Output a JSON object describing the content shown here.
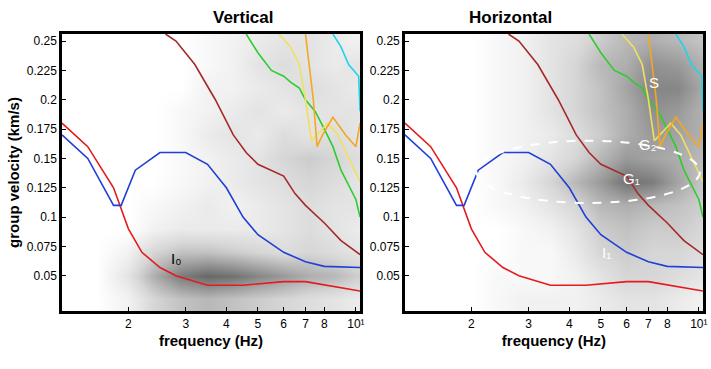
{
  "chart_data": [
    {
      "type": "line",
      "title": "Vertical",
      "x_label": "frequency (Hz)",
      "y_label": "group velocity (km/s)",
      "log": "x",
      "grid": false,
      "xlim": [
        1.25,
        10.3
      ],
      "ylim": [
        0.02,
        0.256
      ],
      "xticks": [
        2,
        3,
        4,
        5,
        6,
        7,
        8,
        {
          "value": 10,
          "label": "10¹"
        }
      ],
      "yticks": [
        0.05,
        0.075,
        0.1,
        0.125,
        0.15,
        0.175,
        0.2,
        0.225,
        0.25
      ],
      "heatmap": {
        "x": [
          1.3,
          1.6,
          2,
          2.4,
          2.9,
          3.5,
          4.2,
          5,
          6,
          7.2,
          8.6,
          10
        ],
        "y": [
          0.03,
          0.05,
          0.07,
          0.09,
          0.11,
          0.13,
          0.15,
          0.17,
          0.19,
          0.21,
          0.23,
          0.25
        ],
        "color_range": [
          0,
          1
        ],
        "z": [
          [
            0,
            0,
            0.1,
            0.3,
            0.4,
            0.45,
            0.4,
            0.35,
            0.3,
            0.25,
            0.2,
            0.15
          ],
          [
            0,
            0,
            0.2,
            0.5,
            0.75,
            0.85,
            0.8,
            0.7,
            0.6,
            0.5,
            0.45,
            0.35
          ],
          [
            0,
            0,
            0.1,
            0.3,
            0.4,
            0.4,
            0.35,
            0.3,
            0.25,
            0.3,
            0.25,
            0.2
          ],
          [
            0,
            0,
            0,
            0.1,
            0.15,
            0.15,
            0.15,
            0.15,
            0.2,
            0.25,
            0.2,
            0.15
          ],
          [
            0,
            0,
            0,
            0.05,
            0.1,
            0.15,
            0.1,
            0.15,
            0.2,
            0.25,
            0.2,
            0.2
          ],
          [
            0,
            0,
            0,
            0,
            0.05,
            0.1,
            0.15,
            0.2,
            0.25,
            0.3,
            0.25,
            0.2
          ],
          [
            0,
            0,
            0,
            0,
            0.05,
            0.1,
            0.15,
            0.2,
            0.3,
            0.35,
            0.3,
            0.25
          ],
          [
            0,
            0,
            0,
            0,
            0.05,
            0.15,
            0.2,
            0.15,
            0.25,
            0.2,
            0.25,
            0.2
          ],
          [
            0,
            0,
            0,
            0,
            0.05,
            0.1,
            0.15,
            0.2,
            0.15,
            0.2,
            0.2,
            0.2
          ],
          [
            0,
            0,
            0,
            0,
            0,
            0.1,
            0.1,
            0.15,
            0.2,
            0.25,
            0.2,
            0.15
          ],
          [
            0,
            0,
            0,
            0,
            0,
            0.05,
            0.1,
            0.2,
            0.25,
            0.2,
            0.15,
            0.2
          ],
          [
            0,
            0,
            0,
            0,
            0,
            0.05,
            0.1,
            0.15,
            0.2,
            0.2,
            0.15,
            0.1
          ]
        ]
      },
      "series": [
        {
          "color": "#e41a1c",
          "x": [
            1.25,
            1.5,
            1.8,
            2.0,
            2.2,
            2.5,
            2.8,
            3.5,
            4.5,
            6,
            7,
            9,
            10.3
          ],
          "values": [
            0.18,
            0.16,
            0.125,
            0.09,
            0.07,
            0.057,
            0.05,
            0.042,
            0.042,
            0.045,
            0.045,
            0.04,
            0.037
          ]
        },
        {
          "color": "#1f3fd6",
          "x": [
            1.25,
            1.5,
            1.8,
            1.9,
            2.1,
            2.5,
            3,
            3.5,
            4,
            4.5,
            5,
            6,
            7,
            8,
            10.3
          ],
          "values": [
            0.17,
            0.15,
            0.11,
            0.11,
            0.14,
            0.155,
            0.155,
            0.145,
            0.125,
            0.1,
            0.085,
            0.07,
            0.062,
            0.058,
            0.057
          ]
        },
        {
          "color": "#a52a2a",
          "x": [
            2.6,
            2.8,
            3.2,
            3.7,
            4.2,
            4.6,
            5,
            5.5,
            6,
            6.5,
            7,
            8,
            9,
            10.3
          ],
          "values": [
            0.256,
            0.25,
            0.23,
            0.2,
            0.17,
            0.155,
            0.145,
            0.14,
            0.135,
            0.12,
            0.11,
            0.095,
            0.08,
            0.068
          ]
        },
        {
          "color": "#2ecc2e",
          "x": [
            4.6,
            5,
            5.5,
            6,
            6.3,
            6.7,
            7,
            7.5,
            8,
            8.5,
            9,
            10,
            10.3
          ],
          "values": [
            0.256,
            0.24,
            0.225,
            0.22,
            0.215,
            0.21,
            0.2,
            0.19,
            0.175,
            0.16,
            0.14,
            0.115,
            0.1
          ]
        },
        {
          "color": "#f0e060",
          "x": [
            5.8,
            6.3,
            6.7,
            7,
            7.3,
            7.6,
            8.2,
            8.8,
            9.5,
            10.3
          ],
          "values": [
            0.256,
            0.245,
            0.23,
            0.2,
            0.165,
            0.17,
            0.18,
            0.17,
            0.15,
            0.13
          ]
        },
        {
          "color": "#f5a623",
          "x": [
            7,
            7.4,
            7.6,
            7.9,
            8.5,
            9.3,
            10,
            10.3
          ],
          "values": [
            0.256,
            0.2,
            0.16,
            0.17,
            0.185,
            0.17,
            0.16,
            0.18
          ]
        },
        {
          "color": "#22d3e6",
          "x": [
            8.5,
            9,
            9.5,
            10.2,
            10.3
          ],
          "values": [
            0.256,
            0.245,
            0.23,
            0.22,
            0.19
          ]
        }
      ],
      "annotations": [
        {
          "text": "I₀",
          "x": 2.8,
          "y": 0.065,
          "color": "#000000"
        }
      ]
    },
    {
      "type": "line",
      "title": "Horizontal",
      "x_label": "frequency (Hz)",
      "log": "x",
      "grid": false,
      "xlim": [
        1.25,
        10.3
      ],
      "ylim": [
        0.02,
        0.256
      ],
      "xticks": [
        2,
        3,
        4,
        5,
        6,
        7,
        8,
        {
          "value": 10,
          "label": "10¹"
        }
      ],
      "yticks": [
        0.05,
        0.075,
        0.1,
        0.125,
        0.15,
        0.175,
        0.2,
        0.225,
        0.25
      ],
      "heatmap": {
        "x": [
          1.3,
          1.6,
          2,
          2.4,
          2.9,
          3.5,
          4.2,
          5,
          6,
          7.2,
          8.6,
          10
        ],
        "y": [
          0.03,
          0.05,
          0.07,
          0.09,
          0.11,
          0.13,
          0.15,
          0.17,
          0.19,
          0.21,
          0.23,
          0.25
        ],
        "color_range": [
          0,
          1
        ],
        "z": [
          [
            0,
            0,
            0,
            0.05,
            0.1,
            0.1,
            0.1,
            0.15,
            0.2,
            0.2,
            0.15,
            0.1
          ],
          [
            0,
            0,
            0,
            0.05,
            0.05,
            0.05,
            0.1,
            0.2,
            0.3,
            0.3,
            0.25,
            0.2
          ],
          [
            0,
            0,
            0,
            0,
            0.05,
            0.05,
            0.15,
            0.3,
            0.35,
            0.3,
            0.3,
            0.25
          ],
          [
            0,
            0,
            0,
            0,
            0.05,
            0.1,
            0.2,
            0.35,
            0.4,
            0.35,
            0.35,
            0.3
          ],
          [
            0,
            0,
            0,
            0.05,
            0.1,
            0.2,
            0.3,
            0.45,
            0.5,
            0.45,
            0.4,
            0.35
          ],
          [
            0,
            0,
            0,
            0.05,
            0.15,
            0.3,
            0.45,
            0.6,
            0.8,
            0.75,
            0.55,
            0.4
          ],
          [
            0,
            0,
            0,
            0.05,
            0.1,
            0.2,
            0.3,
            0.45,
            0.6,
            0.55,
            0.5,
            0.45
          ],
          [
            0,
            0,
            0,
            0.05,
            0.1,
            0.15,
            0.25,
            0.35,
            0.5,
            0.6,
            0.55,
            0.5
          ],
          [
            0,
            0,
            0,
            0.05,
            0.1,
            0.2,
            0.3,
            0.4,
            0.5,
            0.65,
            0.6,
            0.5
          ],
          [
            0,
            0,
            0,
            0.05,
            0.1,
            0.2,
            0.3,
            0.4,
            0.55,
            0.7,
            0.7,
            0.55
          ],
          [
            0,
            0,
            0,
            0.05,
            0.1,
            0.2,
            0.3,
            0.45,
            0.5,
            0.65,
            0.6,
            0.5
          ],
          [
            0,
            0,
            0,
            0.05,
            0.1,
            0.2,
            0.25,
            0.35,
            0.45,
            0.5,
            0.45,
            0.4
          ]
        ]
      },
      "series": [
        {
          "color": "#e41a1c",
          "x": [
            1.25,
            1.5,
            1.8,
            2.0,
            2.2,
            2.5,
            2.8,
            3.5,
            4.5,
            6,
            7,
            9,
            10.3
          ],
          "values": [
            0.18,
            0.16,
            0.125,
            0.09,
            0.07,
            0.057,
            0.05,
            0.042,
            0.042,
            0.045,
            0.045,
            0.04,
            0.037
          ]
        },
        {
          "color": "#1f3fd6",
          "x": [
            1.25,
            1.5,
            1.8,
            1.9,
            2.1,
            2.5,
            3,
            3.5,
            4,
            4.5,
            5,
            6,
            7,
            8,
            10.3
          ],
          "values": [
            0.17,
            0.15,
            0.11,
            0.11,
            0.14,
            0.155,
            0.155,
            0.145,
            0.125,
            0.1,
            0.085,
            0.07,
            0.062,
            0.058,
            0.057
          ]
        },
        {
          "color": "#a52a2a",
          "x": [
            2.6,
            2.8,
            3.2,
            3.7,
            4.2,
            4.6,
            5,
            5.5,
            6,
            6.5,
            7,
            8,
            9,
            10.3
          ],
          "values": [
            0.256,
            0.25,
            0.23,
            0.2,
            0.17,
            0.155,
            0.145,
            0.14,
            0.135,
            0.12,
            0.11,
            0.095,
            0.08,
            0.068
          ]
        },
        {
          "color": "#2ecc2e",
          "x": [
            4.6,
            5,
            5.5,
            6,
            6.3,
            6.7,
            7,
            7.5,
            8,
            8.5,
            9,
            10,
            10.3
          ],
          "values": [
            0.256,
            0.24,
            0.225,
            0.22,
            0.215,
            0.21,
            0.2,
            0.19,
            0.175,
            0.16,
            0.14,
            0.115,
            0.1
          ]
        },
        {
          "color": "#f0e060",
          "x": [
            5.8,
            6.3,
            6.7,
            7,
            7.3,
            7.6,
            8.2,
            8.8,
            9.5,
            10.3
          ],
          "values": [
            0.256,
            0.245,
            0.23,
            0.2,
            0.165,
            0.17,
            0.18,
            0.17,
            0.15,
            0.13
          ]
        },
        {
          "color": "#f5a623",
          "x": [
            7,
            7.4,
            7.6,
            7.9,
            8.5,
            9.3,
            10,
            10.3
          ],
          "values": [
            0.256,
            0.2,
            0.16,
            0.17,
            0.185,
            0.17,
            0.16,
            0.18
          ]
        },
        {
          "color": "#22d3e6",
          "x": [
            8.5,
            9,
            9.5,
            10.2,
            10.3
          ],
          "values": [
            0.256,
            0.245,
            0.23,
            0.22,
            0.19
          ]
        }
      ],
      "annotations": [
        {
          "text": "S",
          "x": 7.3,
          "y": 0.215,
          "color": "#ffffff"
        },
        {
          "text": "G₂",
          "x": 7.0,
          "y": 0.162,
          "color": "#ffffff"
        },
        {
          "text": "G₁",
          "x": 6.2,
          "y": 0.133,
          "color": "#ffffff"
        },
        {
          "text": "I₁",
          "x": 5.2,
          "y": 0.07,
          "color": "#ffffff"
        }
      ]
    }
  ]
}
